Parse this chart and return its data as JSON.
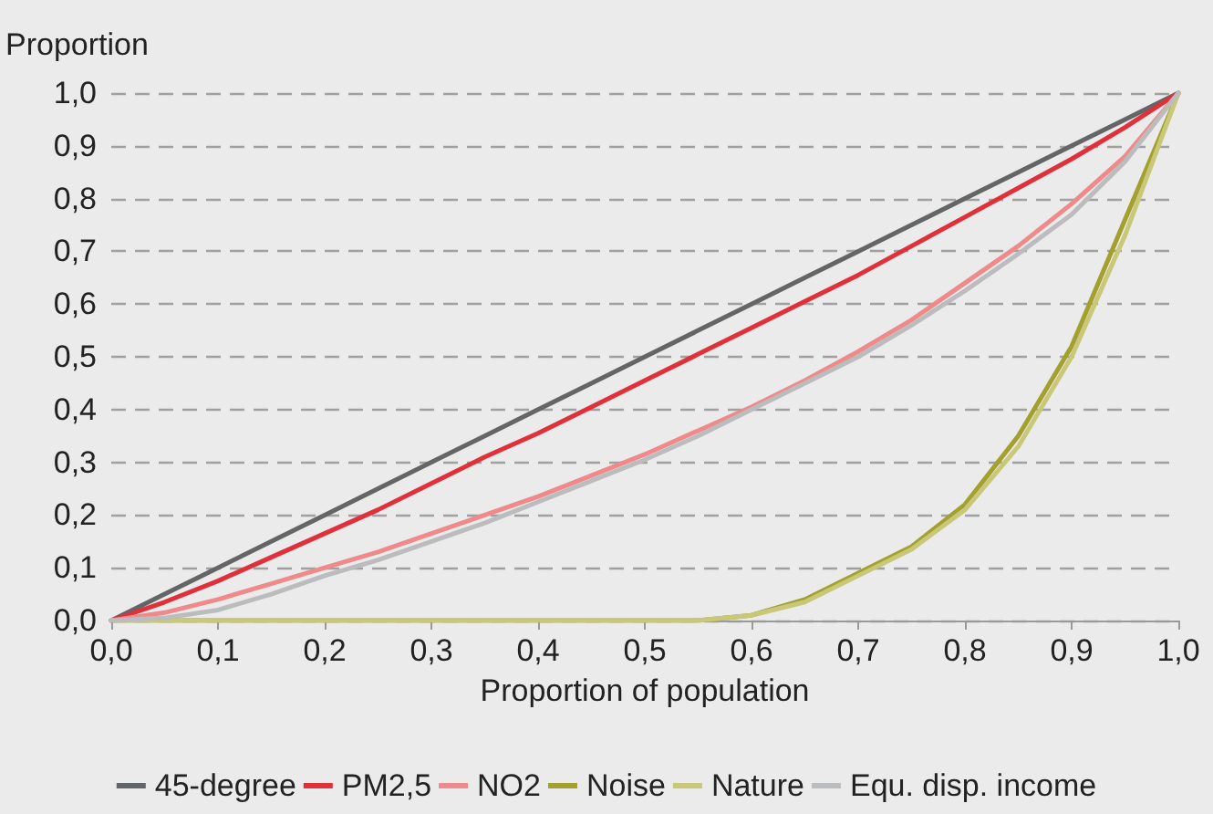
{
  "chart_data": {
    "type": "line",
    "ylabel": "Proportion",
    "xlabel": "Proportion of population",
    "x": [
      0,
      0.05,
      0.1,
      0.15,
      0.2,
      0.25,
      0.3,
      0.35,
      0.4,
      0.45,
      0.5,
      0.55,
      0.6,
      0.65,
      0.7,
      0.75,
      0.8,
      0.85,
      0.9,
      0.95,
      1.0
    ],
    "series": [
      {
        "name": "45-degree",
        "color": "#646566",
        "values": [
          0,
          0.05,
          0.1,
          0.15,
          0.2,
          0.25,
          0.3,
          0.35,
          0.4,
          0.45,
          0.5,
          0.55,
          0.6,
          0.65,
          0.7,
          0.75,
          0.8,
          0.85,
          0.9,
          0.95,
          1.0
        ]
      },
      {
        "name": "PM2,5",
        "color": "#e0303a",
        "values": [
          0,
          0.035,
          0.075,
          0.12,
          0.165,
          0.21,
          0.26,
          0.31,
          0.355,
          0.405,
          0.455,
          0.505,
          0.555,
          0.605,
          0.655,
          0.71,
          0.765,
          0.82,
          0.875,
          0.935,
          1.0
        ]
      },
      {
        "name": "NO2",
        "color": "#f08a8a",
        "values": [
          0,
          0.015,
          0.04,
          0.07,
          0.1,
          0.13,
          0.165,
          0.2,
          0.235,
          0.275,
          0.315,
          0.36,
          0.405,
          0.455,
          0.51,
          0.57,
          0.64,
          0.71,
          0.79,
          0.88,
          1.0
        ]
      },
      {
        "name": "Noise",
        "color": "#a3a02e",
        "values": [
          0,
          0,
          0,
          0,
          0,
          0,
          0,
          0,
          0,
          0,
          0,
          0,
          0.01,
          0.04,
          0.09,
          0.14,
          0.22,
          0.35,
          0.52,
          0.76,
          1.0
        ]
      },
      {
        "name": "Nature",
        "color": "#c8c878",
        "values": [
          0,
          0,
          0,
          0,
          0,
          0,
          0,
          0,
          0,
          0,
          0,
          0,
          0.01,
          0.035,
          0.085,
          0.135,
          0.21,
          0.33,
          0.5,
          0.73,
          1.0
        ]
      },
      {
        "name": "Equ. disp. income",
        "color": "#bbbcbe",
        "values": [
          0,
          0.005,
          0.02,
          0.05,
          0.085,
          0.115,
          0.15,
          0.185,
          0.225,
          0.265,
          0.305,
          0.35,
          0.4,
          0.45,
          0.5,
          0.56,
          0.625,
          0.695,
          0.77,
          0.87,
          1.0
        ]
      }
    ],
    "xlim": [
      0,
      1
    ],
    "ylim": [
      0,
      1
    ],
    "xticks": [
      {
        "value": 0,
        "label": "0,0"
      },
      {
        "value": 0.1,
        "label": "0,1"
      },
      {
        "value": 0.2,
        "label": "0,2"
      },
      {
        "value": 0.3,
        "label": "0,3"
      },
      {
        "value": 0.4,
        "label": "0,4"
      },
      {
        "value": 0.5,
        "label": "0,5"
      },
      {
        "value": 0.6,
        "label": "0,6"
      },
      {
        "value": 0.7,
        "label": "0,7"
      },
      {
        "value": 0.8,
        "label": "0,8"
      },
      {
        "value": 0.9,
        "label": "0,9"
      },
      {
        "value": 1,
        "label": "1,0"
      }
    ],
    "yticks": [
      {
        "value": 0,
        "label": "0,0"
      },
      {
        "value": 0.1,
        "label": "0,1"
      },
      {
        "value": 0.2,
        "label": "0,2"
      },
      {
        "value": 0.3,
        "label": "0,3"
      },
      {
        "value": 0.4,
        "label": "0,4"
      },
      {
        "value": 0.5,
        "label": "0,5"
      },
      {
        "value": 0.6,
        "label": "0,6"
      },
      {
        "value": 0.7,
        "label": "0,7"
      },
      {
        "value": 0.8,
        "label": "0,8"
      },
      {
        "value": 0.9,
        "label": "0,9"
      },
      {
        "value": 1,
        "label": "1,0"
      }
    ],
    "grid": "y",
    "legend": "bottom",
    "marker": "none",
    "line_style": "solid"
  }
}
